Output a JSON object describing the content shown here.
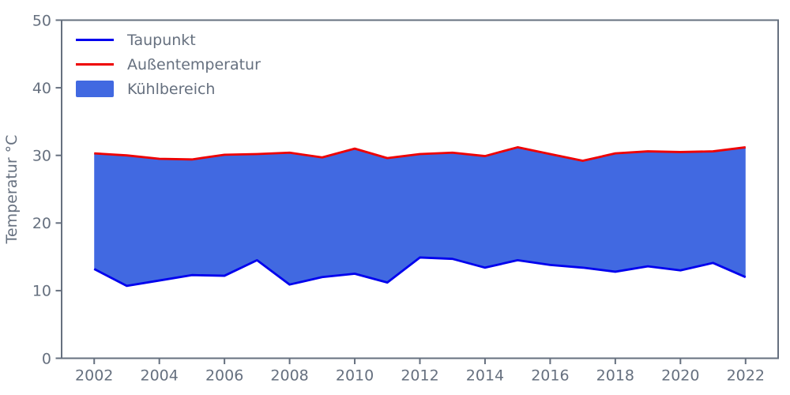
{
  "chart_data": {
    "type": "area",
    "title": "",
    "xlabel": "",
    "ylabel": "Temperatur °C",
    "x": [
      2002,
      2003,
      2004,
      2005,
      2006,
      2007,
      2008,
      2009,
      2010,
      2011,
      2012,
      2013,
      2014,
      2015,
      2016,
      2017,
      2018,
      2019,
      2020,
      2021,
      2022
    ],
    "series": [
      {
        "name": "Taupunkt",
        "color": "#0000ee",
        "values": [
          13.2,
          10.7,
          11.5,
          12.3,
          12.2,
          14.5,
          10.9,
          12.0,
          12.5,
          11.2,
          14.9,
          14.7,
          13.4,
          14.5,
          13.8,
          13.4,
          12.8,
          13.6,
          13.0,
          14.1,
          12.0
        ]
      },
      {
        "name": "Außentemperatur",
        "color": "#ee0000",
        "values": [
          30.3,
          30.0,
          29.5,
          29.4,
          30.1,
          30.2,
          30.4,
          29.7,
          31.0,
          29.6,
          30.2,
          30.4,
          29.9,
          31.2,
          30.2,
          29.2,
          30.3,
          30.6,
          30.5,
          30.6,
          31.2
        ]
      }
    ],
    "fill": {
      "name": "Kühlbereich",
      "color": "#4169e1",
      "between": [
        "Taupunkt",
        "Außentemperatur"
      ]
    },
    "xlim": [
      2001,
      2023
    ],
    "ylim": [
      0,
      50
    ],
    "xticks": [
      2002,
      2004,
      2006,
      2008,
      2010,
      2012,
      2014,
      2016,
      2018,
      2020,
      2022
    ],
    "yticks": [
      0,
      10,
      20,
      30,
      40,
      50
    ],
    "grid": false,
    "legend_position": "upper-left",
    "axis_color": "#66707f",
    "background_color": "#ffffff"
  }
}
